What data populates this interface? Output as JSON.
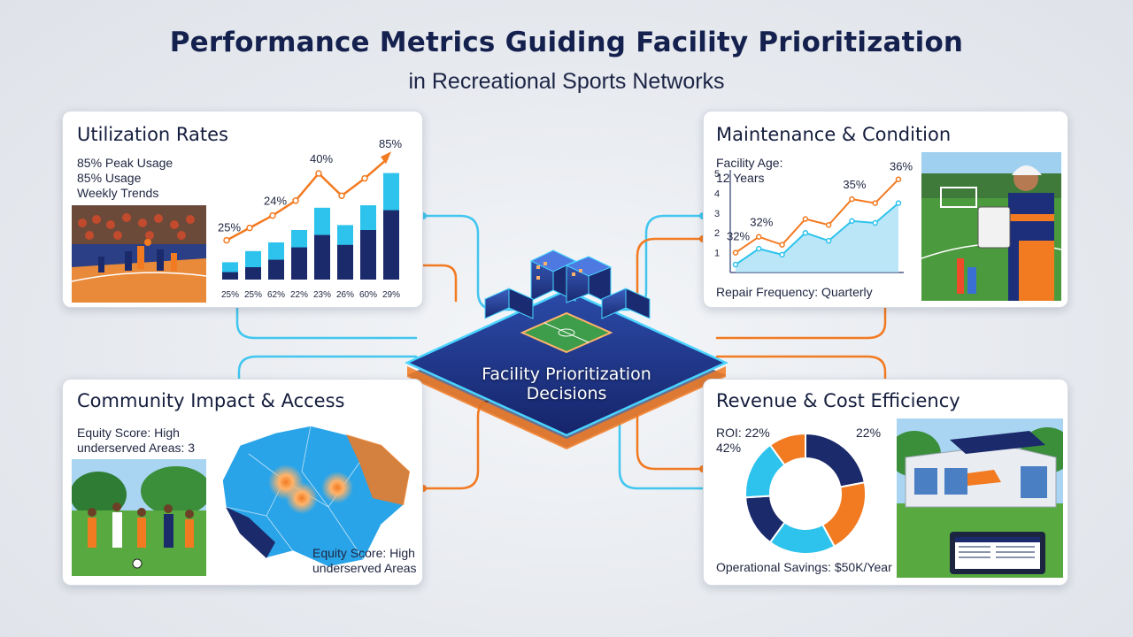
{
  "title": "Performance Metrics Guiding Facility Prioritization",
  "subtitle": "in Recreational Sports Networks",
  "hub": {
    "line1": "Facility Prioritization",
    "line2": "Decisions"
  },
  "utilization": {
    "heading": "Utilization Rates",
    "lines": [
      "85% Peak Usage",
      "85% Usage",
      "Weekly Trends"
    ],
    "chart_data": {
      "type": "bar",
      "categories": [
        "25%",
        "25%",
        "62%",
        "22%",
        "23%",
        "26%",
        "60%",
        "29%"
      ],
      "series": [
        {
          "values": [
            14,
            23,
            30,
            40,
            58,
            44,
            60,
            86
          ]
        },
        {
          "values": [
            6,
            10,
            16,
            26,
            36,
            28,
            40,
            56
          ]
        }
      ],
      "line_values": [
        26,
        36,
        46,
        58,
        80,
        62,
        76,
        92
      ],
      "data_labels": [
        "25%",
        "24%",
        "40%",
        "85%"
      ]
    }
  },
  "maintenance": {
    "heading": "Maintenance & Condition",
    "age_label": "Facility Age:",
    "age_value": "12 Years",
    "repair": "Repair Frequency: Quarterly",
    "chart_data": {
      "type": "line",
      "yticks": [
        "5",
        "4",
        "3",
        "2",
        "1"
      ],
      "series": [
        {
          "values": [
            1.0,
            1.8,
            1.4,
            2.7,
            2.4,
            3.7,
            3.5,
            4.7
          ]
        },
        {
          "values": [
            0.4,
            1.2,
            0.9,
            2.0,
            1.6,
            2.6,
            2.5,
            3.5
          ]
        }
      ],
      "data_labels": [
        "32%",
        "32%",
        "35%",
        "36%"
      ]
    }
  },
  "community": {
    "heading": "Community Impact & Access",
    "equity_label": "Equity Score: High",
    "underserved": "underserved Areas: 3",
    "map_label_1": "Equity Score: High",
    "map_label_2": "underserved Areas"
  },
  "revenue": {
    "heading": "Revenue & Cost Efficiency",
    "roi": "ROI: 22%",
    "share": "42%",
    "right_label": "22%",
    "savings": "Operational Savings: $50K/Year",
    "chart_data": {
      "type": "pie",
      "values": [
        22,
        20,
        18,
        14,
        16,
        10
      ],
      "colors": [
        "#1b2a6b",
        "#f27a21",
        "#2ec3ec",
        "#1b2a6b",
        "#2ec3ec",
        "#f27a21"
      ]
    }
  },
  "colors": {
    "navy": "#1b2a6b",
    "orange": "#f27a21",
    "cyan": "#2ec3ec"
  }
}
